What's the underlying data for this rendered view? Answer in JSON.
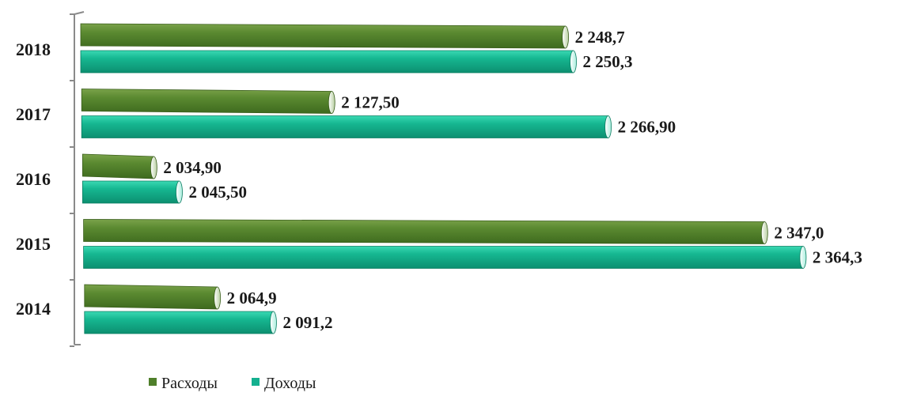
{
  "chart_data": {
    "type": "bar",
    "orientation": "horizontal",
    "categories": [
      "2018",
      "2017",
      "2016",
      "2015",
      "2014"
    ],
    "series": [
      {
        "name": "Расходы",
        "color": "#4f7f2a",
        "values": [
          2248.7,
          2127.5,
          2034.9,
          2347.0,
          2064.9
        ],
        "labels": [
          "2 248,7",
          "2 127,50",
          "2 034,90",
          "2 347,0",
          "2 064,9"
        ]
      },
      {
        "name": "Доходы",
        "color": "#14b08f",
        "values": [
          2250.3,
          2266.9,
          2045.5,
          2364.3,
          2091.2
        ],
        "labels": [
          "2 250,3",
          "2 266,90",
          "2 045,50",
          "2 364,3",
          "2 091,2"
        ]
      }
    ],
    "title": "",
    "xlabel": "",
    "ylabel": "",
    "grid": false,
    "legend_position": "bottom-left",
    "style": "3d-cylinder"
  }
}
